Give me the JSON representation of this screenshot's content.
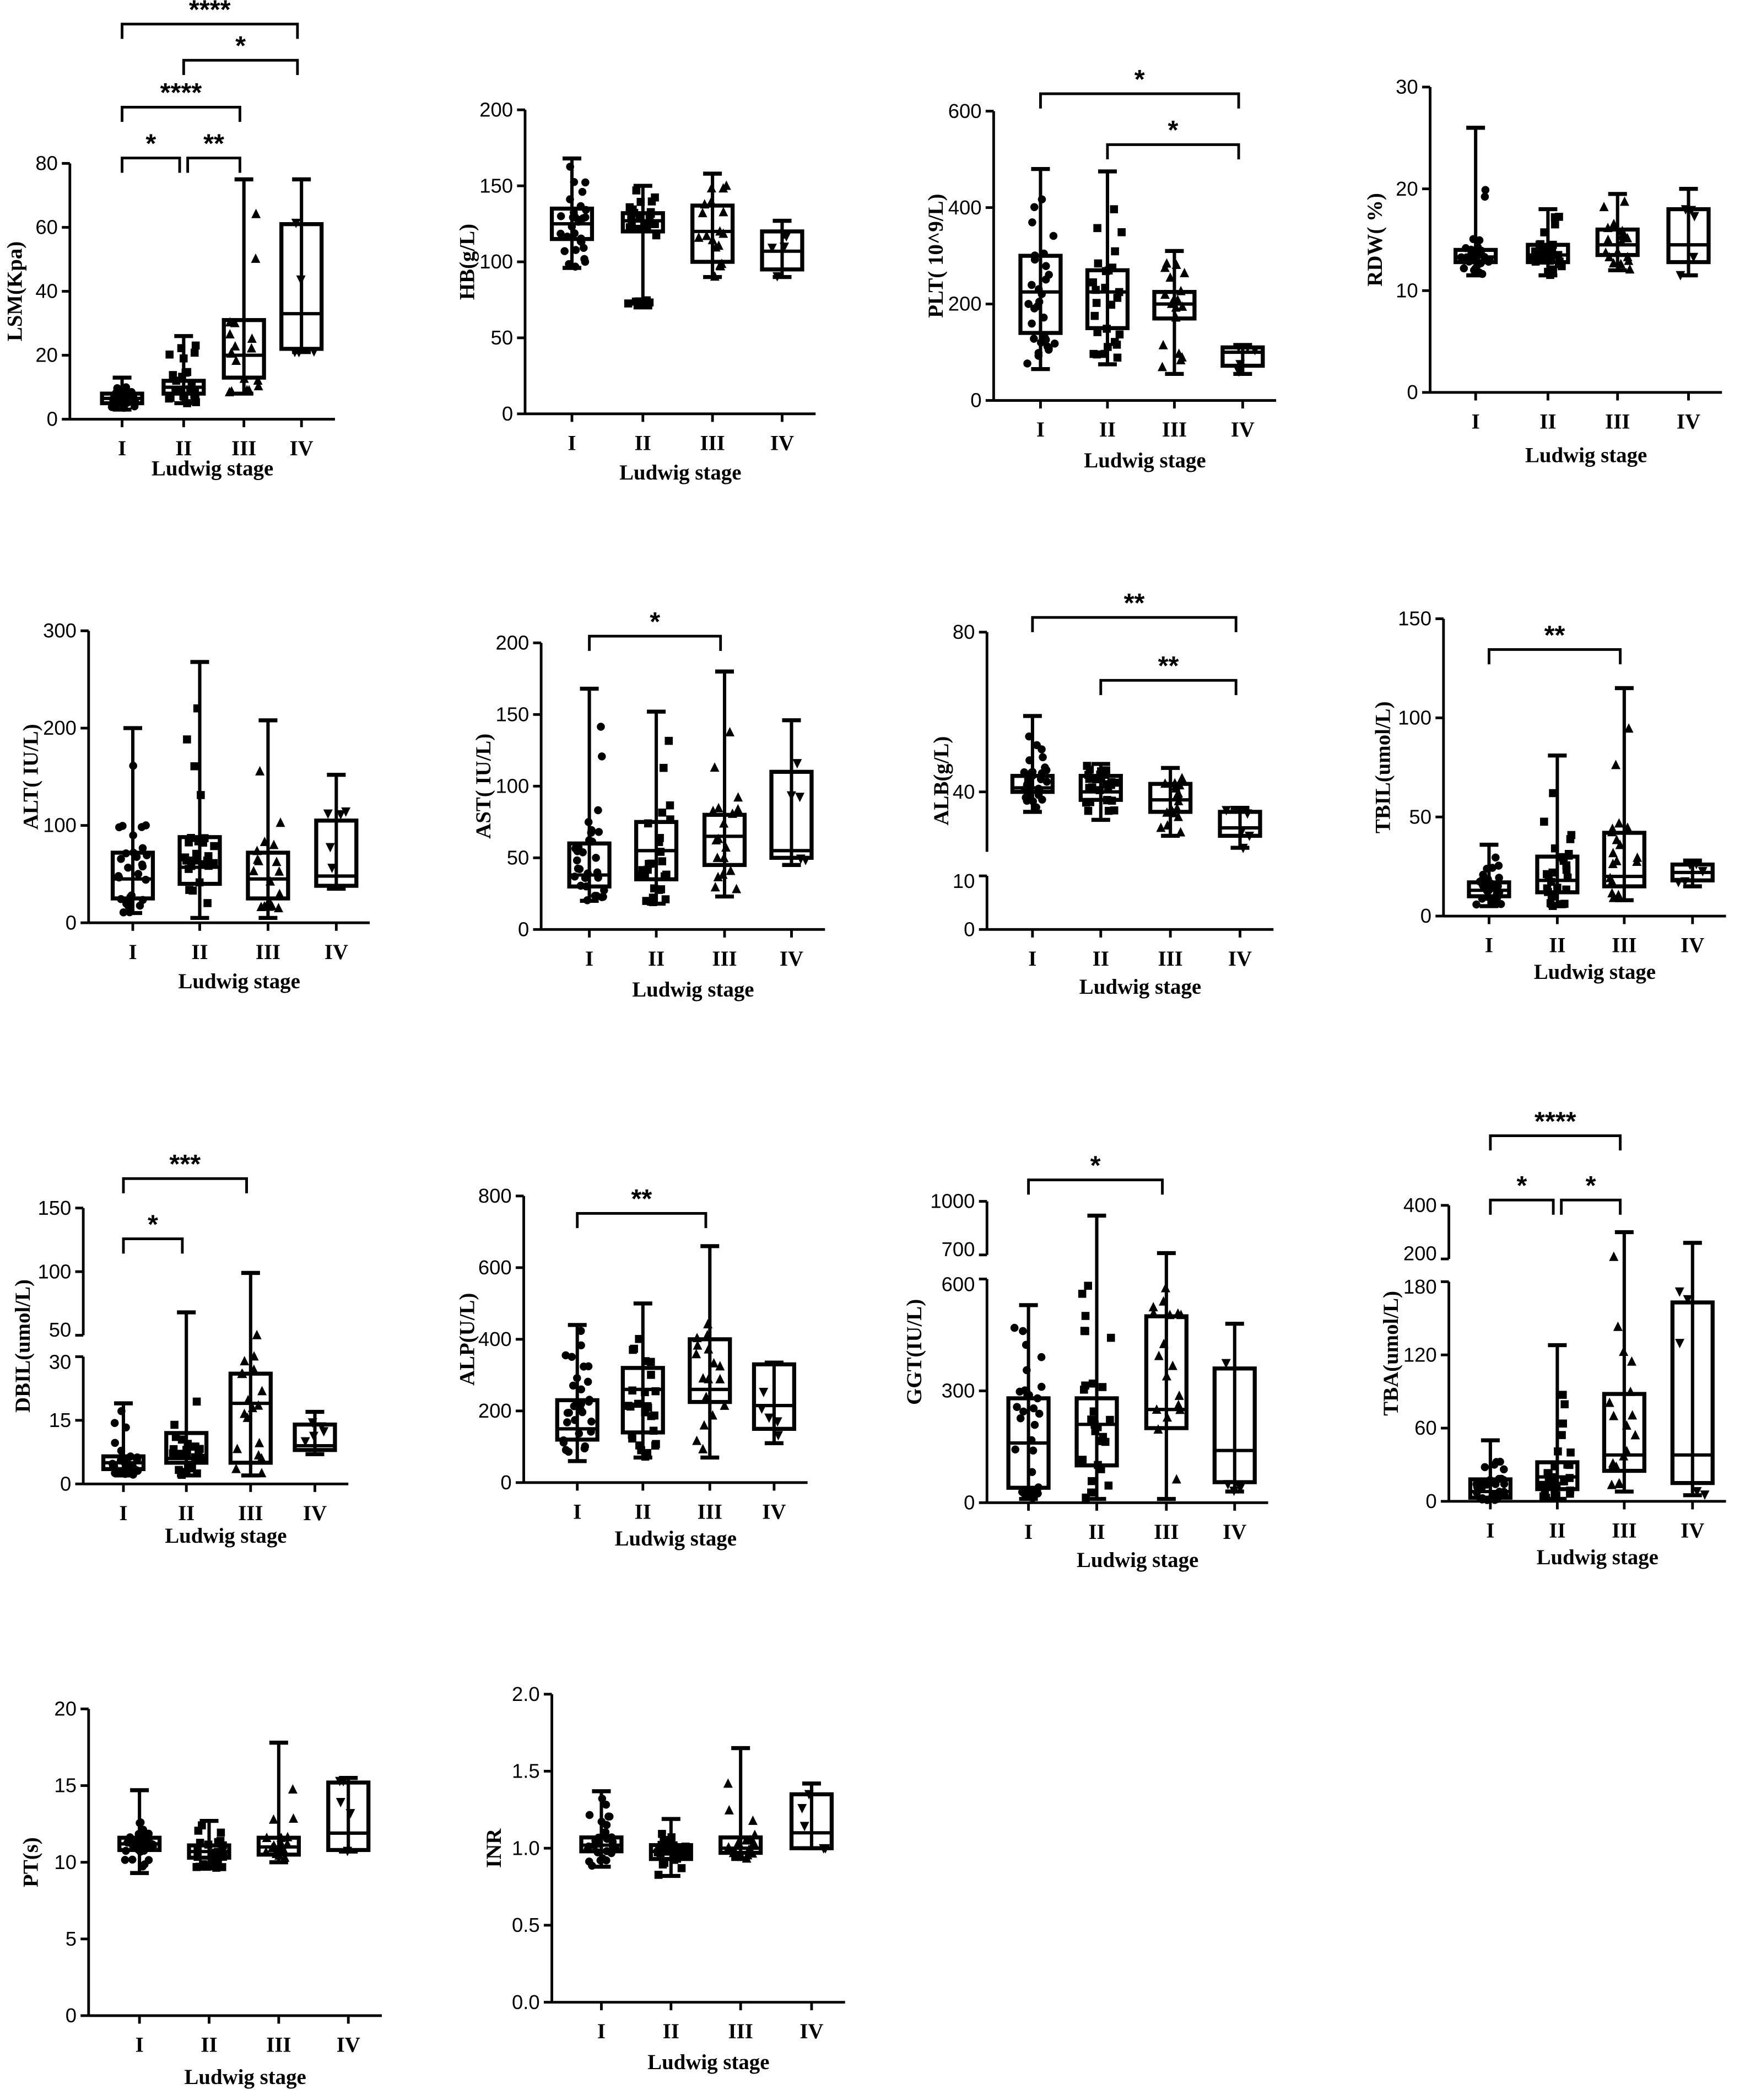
{
  "chart_data": [
    {
      "type": "box",
      "ylabel": "LSM(Kpa)",
      "xlabel": "Ludwig stage",
      "categories": [
        "I",
        "II",
        "III",
        "IV"
      ],
      "ylim": [
        0,
        80
      ],
      "yticks": [
        0,
        20,
        40,
        60,
        80
      ],
      "boxes": [
        {
          "min": 3,
          "q1": 5,
          "median": 6.5,
          "q3": 8,
          "max": 13
        },
        {
          "min": 5,
          "q1": 8,
          "median": 10,
          "q3": 12,
          "max": 26
        },
        {
          "min": 8,
          "q1": 13,
          "median": 20,
          "q3": 31,
          "max": 75
        },
        {
          "min": 21,
          "q1": 22,
          "median": 33,
          "q3": 61,
          "max": 75
        }
      ],
      "comparisons": [
        {
          "groups": [
            "I",
            "IV"
          ],
          "label": "****"
        },
        {
          "groups": [
            "II",
            "IV"
          ],
          "label": "*"
        },
        {
          "groups": [
            "I",
            "III"
          ],
          "label": "****"
        },
        {
          "groups": [
            "I",
            "II"
          ],
          "label": "*"
        },
        {
          "groups": [
            "II",
            "III"
          ],
          "label": "**"
        }
      ]
    },
    {
      "type": "box",
      "ylabel": "HB(g/L)",
      "xlabel": "Ludwig stage",
      "categories": [
        "I",
        "II",
        "III",
        "IV"
      ],
      "ylim": [
        0,
        200
      ],
      "yticks": [
        0,
        50,
        100,
        150,
        200
      ],
      "boxes": [
        {
          "min": 96,
          "q1": 115,
          "median": 125,
          "q3": 135,
          "max": 168
        },
        {
          "min": 70,
          "q1": 120,
          "median": 127,
          "q3": 132,
          "max": 150
        },
        {
          "min": 90,
          "q1": 100,
          "median": 120,
          "q3": 137,
          "max": 158
        },
        {
          "min": 90,
          "q1": 95,
          "median": 107,
          "q3": 120,
          "max": 127
        }
      ],
      "comparisons": []
    },
    {
      "type": "box",
      "ylabel": "PLT( 10^9/L)",
      "xlabel": "Ludwig stage",
      "categories": [
        "I",
        "II",
        "III",
        "IV"
      ],
      "ylim": [
        0,
        600
      ],
      "yticks": [
        0,
        200,
        400,
        600
      ],
      "boxes": [
        {
          "min": 65,
          "q1": 140,
          "median": 225,
          "q3": 300,
          "max": 480
        },
        {
          "min": 75,
          "q1": 150,
          "median": 225,
          "q3": 270,
          "max": 475
        },
        {
          "min": 55,
          "q1": 170,
          "median": 200,
          "q3": 225,
          "max": 310
        },
        {
          "min": 55,
          "q1": 72,
          "median": 100,
          "q3": 110,
          "max": 115
        }
      ],
      "comparisons": [
        {
          "groups": [
            "I",
            "IV"
          ],
          "label": "*"
        },
        {
          "groups": [
            "II",
            "IV"
          ],
          "label": "*"
        }
      ]
    },
    {
      "type": "box",
      "ylabel": "RDW( %)",
      "xlabel": "Ludwig stage",
      "categories": [
        "I",
        "II",
        "III",
        "IV"
      ],
      "ylim": [
        0,
        30
      ],
      "yticks": [
        0,
        10,
        20,
        30
      ],
      "boxes": [
        {
          "min": 11.5,
          "q1": 12.8,
          "median": 13.3,
          "q3": 14,
          "max": 26
        },
        {
          "min": 11.5,
          "q1": 12.8,
          "median": 13.5,
          "q3": 14.5,
          "max": 18
        },
        {
          "min": 12,
          "q1": 13.5,
          "median": 14.5,
          "q3": 16,
          "max": 19.5
        },
        {
          "min": 11.5,
          "q1": 12.8,
          "median": 14.5,
          "q3": 18,
          "max": 20
        }
      ],
      "comparisons": []
    },
    {
      "type": "box",
      "ylabel": "ALT( IU/L)",
      "xlabel": "Ludwig stage",
      "categories": [
        "I",
        "II",
        "III",
        "IV"
      ],
      "ylim": [
        0,
        300
      ],
      "yticks": [
        0,
        100,
        200,
        300
      ],
      "boxes": [
        {
          "min": 10,
          "q1": 25,
          "median": 45,
          "q3": 72,
          "max": 200
        },
        {
          "min": 5,
          "q1": 40,
          "median": 57,
          "q3": 88,
          "max": 268
        },
        {
          "min": 5,
          "q1": 25,
          "median": 45,
          "q3": 72,
          "max": 208
        },
        {
          "min": 35,
          "q1": 38,
          "median": 48,
          "q3": 105,
          "max": 152
        }
      ],
      "comparisons": []
    },
    {
      "type": "box",
      "ylabel": "AST( IU/L)",
      "xlabel": "Ludwig stage",
      "categories": [
        "I",
        "II",
        "III",
        "IV"
      ],
      "ylim": [
        0,
        200
      ],
      "yticks": [
        0,
        50,
        100,
        150,
        200
      ],
      "boxes": [
        {
          "min": 20,
          "q1": 30,
          "median": 38,
          "q3": 60,
          "max": 168
        },
        {
          "min": 18,
          "q1": 35,
          "median": 55,
          "q3": 75,
          "max": 152
        },
        {
          "min": 23,
          "q1": 45,
          "median": 65,
          "q3": 80,
          "max": 180
        },
        {
          "min": 45,
          "q1": 50,
          "median": 55,
          "q3": 110,
          "max": 146
        }
      ],
      "comparisons": [
        {
          "groups": [
            "I",
            "III"
          ],
          "label": "*"
        }
      ]
    },
    {
      "type": "box",
      "ylabel": "ALB(g/L)",
      "xlabel": "Ludwig stage",
      "categories": [
        "I",
        "II",
        "III",
        "IV"
      ],
      "y_segments": [
        [
          0,
          10
        ],
        [
          25,
          80
        ]
      ],
      "yticks": [
        0,
        10,
        40,
        80
      ],
      "boxes": [
        {
          "min": 35,
          "q1": 40,
          "median": 41,
          "q3": 44,
          "max": 59
        },
        {
          "min": 33,
          "q1": 38,
          "median": 40,
          "q3": 44,
          "max": 47
        },
        {
          "min": 29,
          "q1": 35,
          "median": 38,
          "q3": 42,
          "max": 46
        },
        {
          "min": 26,
          "q1": 29,
          "median": 31,
          "q3": 35,
          "max": 36
        }
      ],
      "comparisons": [
        {
          "groups": [
            "I",
            "IV"
          ],
          "label": "**"
        },
        {
          "groups": [
            "II",
            "IV"
          ],
          "label": "**"
        }
      ]
    },
    {
      "type": "box",
      "ylabel": "TBIL(umol/L)",
      "xlabel": "Ludwig stage",
      "categories": [
        "I",
        "II",
        "III",
        "IV"
      ],
      "ylim": [
        0,
        150
      ],
      "yticks": [
        0,
        50,
        100,
        150
      ],
      "boxes": [
        {
          "min": 5,
          "q1": 10,
          "median": 13,
          "q3": 17,
          "max": 36
        },
        {
          "min": 5,
          "q1": 12,
          "median": 18,
          "q3": 30,
          "max": 81
        },
        {
          "min": 8,
          "q1": 15,
          "median": 20,
          "q3": 42,
          "max": 115
        },
        {
          "min": 15,
          "q1": 18,
          "median": 22,
          "q3": 26,
          "max": 28
        }
      ],
      "comparisons": [
        {
          "groups": [
            "I",
            "III"
          ],
          "label": "**"
        }
      ]
    },
    {
      "type": "box",
      "ylabel": "DBIL(umol/L)",
      "xlabel": "Ludwig stage",
      "categories": [
        "I",
        "II",
        "III",
        "IV"
      ],
      "y_segments": [
        [
          0,
          30
        ],
        [
          50,
          150
        ]
      ],
      "yticks": [
        0,
        15,
        30,
        50,
        100,
        150
      ],
      "boxes": [
        {
          "min": 2,
          "q1": 3.5,
          "median": 5,
          "q3": 6.5,
          "max": 19
        },
        {
          "min": 2,
          "q1": 5,
          "median": 6,
          "q3": 12,
          "max": 68
        },
        {
          "min": 2,
          "q1": 5,
          "median": 19,
          "q3": 26,
          "max": 99
        },
        {
          "min": 7,
          "q1": 8,
          "median": 9,
          "q3": 14,
          "max": 17
        }
      ],
      "comparisons": [
        {
          "groups": [
            "I",
            "III"
          ],
          "label": "***"
        },
        {
          "groups": [
            "I",
            "II"
          ],
          "label": "*"
        }
      ]
    },
    {
      "type": "box",
      "ylabel": "ALP(U/L)",
      "xlabel": "Ludwig stage",
      "categories": [
        "I",
        "II",
        "III",
        "IV"
      ],
      "ylim": [
        0,
        800
      ],
      "yticks": [
        0,
        200,
        400,
        600,
        800
      ],
      "boxes": [
        {
          "min": 60,
          "q1": 120,
          "median": 150,
          "q3": 230,
          "max": 440
        },
        {
          "min": 70,
          "q1": 140,
          "median": 260,
          "q3": 320,
          "max": 500
        },
        {
          "min": 70,
          "q1": 225,
          "median": 260,
          "q3": 400,
          "max": 660
        },
        {
          "min": 110,
          "q1": 150,
          "median": 215,
          "q3": 330,
          "max": 335
        }
      ],
      "comparisons": [
        {
          "groups": [
            "I",
            "III"
          ],
          "label": "**"
        }
      ]
    },
    {
      "type": "box",
      "ylabel": "GGT(IU/L)",
      "xlabel": "Ludwig stage",
      "categories": [
        "I",
        "II",
        "III",
        "IV"
      ],
      "y_segments": [
        [
          0,
          600
        ],
        [
          700,
          1000
        ]
      ],
      "yticks": [
        0,
        300,
        600,
        700,
        1000
      ],
      "boxes": [
        {
          "min": 10,
          "q1": 40,
          "median": 160,
          "q3": 280,
          "max": 530
        },
        {
          "min": 10,
          "q1": 100,
          "median": 210,
          "q3": 280,
          "max": 920
        },
        {
          "min": 10,
          "q1": 200,
          "median": 250,
          "q3": 500,
          "max": 710
        },
        {
          "min": 30,
          "q1": 55,
          "median": 140,
          "q3": 360,
          "max": 480
        }
      ],
      "comparisons": [
        {
          "groups": [
            "I",
            "III"
          ],
          "label": "*"
        }
      ]
    },
    {
      "type": "box",
      "ylabel": "TBA(umol/L)",
      "xlabel": "Ludwig stage",
      "categories": [
        "I",
        "II",
        "III",
        "IV"
      ],
      "y_segments": [
        [
          0,
          180
        ],
        [
          200,
          400
        ]
      ],
      "yticks": [
        0,
        60,
        120,
        180,
        200,
        400
      ],
      "boxes": [
        {
          "min": 1,
          "q1": 3,
          "median": 8,
          "q3": 18,
          "max": 50
        },
        {
          "min": 2,
          "q1": 10,
          "median": 20,
          "q3": 32,
          "max": 128
        },
        {
          "min": 8,
          "q1": 25,
          "median": 38,
          "q3": 88,
          "max": 300
        },
        {
          "min": 5,
          "q1": 15,
          "median": 38,
          "q3": 163,
          "max": 260
        }
      ],
      "comparisons": [
        {
          "groups": [
            "I",
            "III"
          ],
          "label": "****"
        },
        {
          "groups": [
            "I",
            "II"
          ],
          "label": "*"
        },
        {
          "groups": [
            "II",
            "III"
          ],
          "label": "*"
        }
      ]
    },
    {
      "type": "box",
      "ylabel": "PT(s)",
      "xlabel": "Ludwig stage",
      "categories": [
        "I",
        "II",
        "III",
        "IV"
      ],
      "ylim": [
        0,
        20
      ],
      "yticks": [
        0,
        5,
        10,
        15,
        20
      ],
      "boxes": [
        {
          "min": 9.3,
          "q1": 10.8,
          "median": 11.2,
          "q3": 11.6,
          "max": 14.7
        },
        {
          "min": 9.6,
          "q1": 10.3,
          "median": 10.7,
          "q3": 11.1,
          "max": 12.7
        },
        {
          "min": 10,
          "q1": 10.5,
          "median": 11,
          "q3": 11.6,
          "max": 17.8
        },
        {
          "min": 10.7,
          "q1": 10.8,
          "median": 11.9,
          "q3": 15.2,
          "max": 15.5
        }
      ],
      "comparisons": []
    },
    {
      "type": "box",
      "ylabel": "INR",
      "xlabel": "Ludwig stage",
      "categories": [
        "I",
        "II",
        "III",
        "IV"
      ],
      "ylim": [
        0,
        2
      ],
      "yticks": [
        "0.0",
        "0.5",
        "1.0",
        "1.5",
        "2.0"
      ],
      "boxes": [
        {
          "min": 0.88,
          "q1": 0.98,
          "median": 1.02,
          "q3": 1.07,
          "max": 1.37
        },
        {
          "min": 0.82,
          "q1": 0.93,
          "median": 0.98,
          "q3": 1.02,
          "max": 1.19
        },
        {
          "min": 0.93,
          "q1": 0.97,
          "median": 1.0,
          "q3": 1.07,
          "max": 1.65
        },
        {
          "min": 1.0,
          "q1": 1.0,
          "median": 1.1,
          "q3": 1.35,
          "max": 1.42
        }
      ],
      "comparisons": []
    }
  ],
  "markers": [
    "circle",
    "square",
    "triangle",
    "inverted-triangle"
  ],
  "colors": {
    "ink": "#000000",
    "background": "#ffffff"
  }
}
